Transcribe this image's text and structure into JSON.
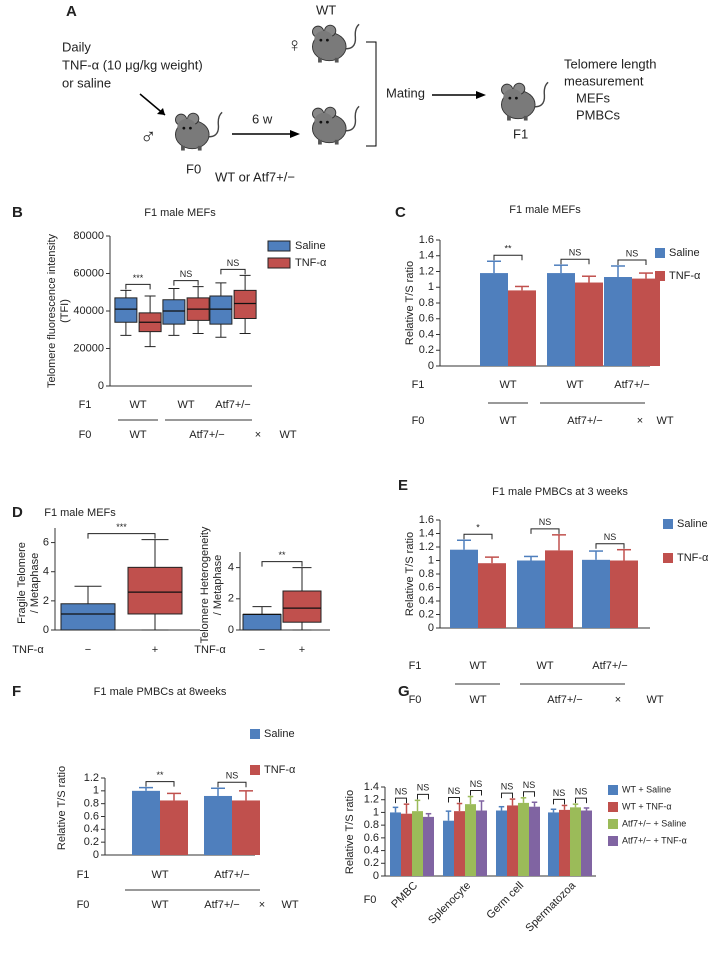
{
  "diagram": {
    "letter": "A",
    "female_label": "WT",
    "female_symbol": "♀",
    "treatment": [
      "Daily",
      "TNF-α (10 μg/kg weight)",
      "or saline"
    ],
    "male_symbol": "♂",
    "duration": "6 w",
    "f0_label": "F0",
    "f0_genotype": "WT or Atf7+/−",
    "mating": "Mating",
    "f1_label": "F1",
    "measurement": [
      "Telomere length",
      "measurement",
      "MEFs",
      "PMBCs"
    ]
  },
  "chart_data": [
    {
      "type": "box",
      "letter": "B",
      "title": "F1 male MEFs",
      "ylabel": [
        "Telomere fluorescence intensity",
        "(TFI)"
      ],
      "ylim": [
        0,
        80000
      ],
      "yticks": [
        0,
        20000,
        40000,
        60000,
        80000
      ],
      "categories": [
        "WT",
        "WT",
        "Atf7+/−"
      ],
      "row1_label": "F1",
      "row2_label": "F0",
      "row2": [
        "WT",
        "Atf7+/−",
        "×",
        "WT"
      ],
      "series": [
        {
          "name": "Saline",
          "color": "#4f7fbd",
          "boxes": [
            {
              "low": 27000,
              "q1": 34000,
              "median": 41000,
              "q3": 47000,
              "high": 51000
            },
            {
              "low": 27000,
              "q1": 33000,
              "median": 40000,
              "q3": 46000,
              "high": 52000
            },
            {
              "low": 26000,
              "q1": 33000,
              "median": 41000,
              "q3": 48000,
              "high": 55000
            }
          ]
        },
        {
          "name": "TNF-α",
          "color": "#c0504d",
          "boxes": [
            {
              "low": 21000,
              "q1": 29000,
              "median": 34000,
              "q3": 39000,
              "high": 48000
            },
            {
              "low": 28000,
              "q1": 35000,
              "median": 41000,
              "q3": 47000,
              "high": 53000
            },
            {
              "low": 28000,
              "q1": 36000,
              "median": 44000,
              "q3": 51000,
              "high": 59000
            }
          ]
        }
      ],
      "significance": [
        "***",
        "NS",
        "NS"
      ]
    },
    {
      "type": "bar",
      "letter": "C",
      "title": "F1 male MEFs",
      "ylabel": [
        "Relative T/S ratio"
      ],
      "ylim": [
        0,
        1.6
      ],
      "yticks": [
        0,
        0.2,
        0.4,
        0.6,
        0.8,
        1,
        1.2,
        1.4,
        1.6
      ],
      "categories": [
        "WT",
        "WT",
        "Atf7+/−"
      ],
      "row1_label": "F1",
      "row2_label": "F0",
      "row2": [
        "WT",
        "Atf7+/−",
        "×",
        "WT"
      ],
      "series": [
        {
          "name": "Saline",
          "color": "#4f7fbd",
          "values": [
            1.18,
            1.18,
            1.13
          ],
          "errors": [
            0.15,
            0.1,
            0.14
          ]
        },
        {
          "name": "TNF-α",
          "color": "#c0504d",
          "values": [
            0.96,
            1.06,
            1.11
          ],
          "errors": [
            0.05,
            0.08,
            0.07
          ]
        }
      ],
      "significance": [
        "**",
        "NS",
        "NS"
      ]
    },
    {
      "type": "box",
      "letter": "D",
      "title": "F1 male MEFs",
      "ylabel": [
        "Fragile Telomere",
        "/ Metaphase"
      ],
      "ylim": [
        0,
        7
      ],
      "yticks": [
        0,
        2,
        4,
        6
      ],
      "categories": [
        "−",
        "+"
      ],
      "xlabel": "TNF-α",
      "series": [
        {
          "colors": [
            "#4f7fbd",
            "#c0504d"
          ],
          "boxes": [
            {
              "low": 0,
              "q1": 0,
              "median": 1.1,
              "q3": 1.8,
              "high": 3.0
            },
            {
              "low": 0,
              "q1": 1.1,
              "median": 2.6,
              "q3": 4.3,
              "high": 6.2
            }
          ]
        }
      ],
      "significance": [
        "***"
      ]
    },
    {
      "type": "box",
      "ylabel": [
        "Telomere Heterogeneity",
        "/ Metaphase"
      ],
      "ylim": [
        0,
        5
      ],
      "yticks": [
        0,
        2,
        4
      ],
      "categories": [
        "−",
        "+"
      ],
      "xlabel": "TNF-α",
      "series": [
        {
          "colors": [
            "#4f7fbd",
            "#c0504d"
          ],
          "boxes": [
            {
              "low": 0,
              "q1": 0,
              "median": 1.0,
              "q3": 1.0,
              "high": 1.5
            },
            {
              "low": 0,
              "q1": 0.5,
              "median": 1.4,
              "q3": 2.5,
              "high": 4.0
            }
          ]
        }
      ],
      "significance": [
        "**"
      ]
    },
    {
      "type": "bar",
      "letter": "E",
      "title": "F1 male PMBCs at 3 weeks",
      "ylabel": [
        "Relative T/S ratio"
      ],
      "ylim": [
        0,
        1.6
      ],
      "yticks": [
        0,
        0.2,
        0.4,
        0.6,
        0.8,
        1,
        1.2,
        1.4,
        1.6
      ],
      "categories": [
        "WT",
        "WT",
        "Atf7+/−"
      ],
      "row1_label": "F1",
      "row2_label": "F0",
      "row2": [
        "WT",
        "Atf7+/−",
        "×",
        "WT"
      ],
      "series": [
        {
          "name": "Saline",
          "color": "#4f7fbd",
          "values": [
            1.16,
            1.0,
            1.01
          ],
          "errors": [
            0.14,
            0.06,
            0.13
          ]
        },
        {
          "name": "TNF-α",
          "color": "#c0504d",
          "values": [
            0.96,
            1.15,
            1.0
          ],
          "errors": [
            0.09,
            0.23,
            0.16
          ]
        }
      ],
      "significance": [
        "*",
        "NS",
        "NS"
      ]
    },
    {
      "type": "bar",
      "letter": "F",
      "title": "F1 male PMBCs at 8weeks",
      "ylabel": [
        "Relative T/S ratio"
      ],
      "ylim": [
        0,
        1.2
      ],
      "yticks": [
        0,
        0.2,
        0.4,
        0.6,
        0.8,
        1,
        1.2
      ],
      "categories": [
        "WT",
        "Atf7+/−"
      ],
      "row1_label": "F1",
      "row2_label": "F0",
      "row2": [
        "WT",
        "Atf7+/−",
        "×",
        "WT"
      ],
      "series": [
        {
          "name": "Saline",
          "color": "#4f7fbd",
          "values": [
            1.0,
            0.92
          ],
          "errors": [
            0.05,
            0.12
          ]
        },
        {
          "name": "TNF-α",
          "color": "#c0504d",
          "values": [
            0.85,
            0.85
          ],
          "errors": [
            0.11,
            0.15
          ]
        }
      ],
      "significance": [
        "**",
        "NS"
      ]
    },
    {
      "type": "bar",
      "letter": "G",
      "ylabel": [
        "Relative T/S ratio"
      ],
      "ylim": [
        0,
        1.4
      ],
      "yticks": [
        0,
        0.2,
        0.4,
        0.6,
        0.8,
        1,
        1.2,
        1.4
      ],
      "categories": [
        "PMBC",
        "Splenocyte",
        "Germ cell",
        "Spermatozoa"
      ],
      "row2_label": "F0",
      "series": [
        {
          "name": "WT + Saline",
          "color": "#4f7fbd",
          "values": [
            1.0,
            0.87,
            1.03,
            1.0
          ],
          "errors": [
            0.08,
            0.15,
            0.06,
            0.05
          ]
        },
        {
          "name": "WT + TNF-α",
          "color": "#c0504d",
          "values": [
            0.98,
            1.02,
            1.11,
            1.04
          ],
          "errors": [
            0.15,
            0.12,
            0.1,
            0.07
          ]
        },
        {
          "name": "Atf7+/− + Saline",
          "color": "#9bbb59",
          "values": [
            1.02,
            1.13,
            1.15,
            1.08
          ],
          "errors": [
            0.17,
            0.12,
            0.08,
            0.05
          ]
        },
        {
          "name": "Atf7+/− + TNF-α",
          "color": "#8064a2",
          "values": [
            0.93,
            1.03,
            1.09,
            1.03
          ],
          "errors": [
            0.05,
            0.15,
            0.07,
            0.04
          ]
        }
      ],
      "significance": [
        "NS",
        "NS",
        "NS",
        "NS",
        "NS",
        "NS",
        "NS",
        "NS"
      ]
    }
  ]
}
